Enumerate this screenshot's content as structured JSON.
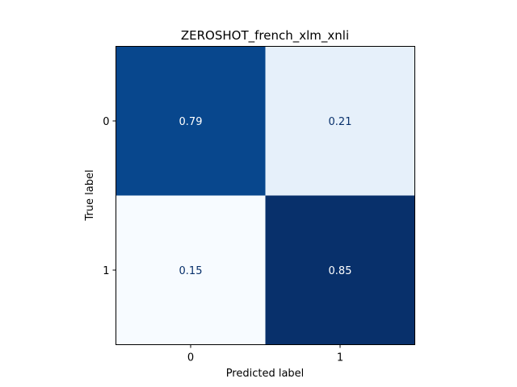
{
  "chart_data": {
    "type": "heatmap",
    "title": "ZEROSHOT_french_xlm_xnli",
    "xlabel": "Predicted label",
    "ylabel": "True label",
    "x_categories": [
      "0",
      "1"
    ],
    "y_categories": [
      "0",
      "1"
    ],
    "values": [
      [
        0.79,
        0.21
      ],
      [
        0.15,
        0.85
      ]
    ],
    "value_labels": [
      [
        "0.79",
        "0.21"
      ],
      [
        "0.15",
        "0.85"
      ]
    ],
    "colormap": "Blues",
    "colors": {
      "light": "#f7fbff",
      "dark": "#08306b",
      "text_on_dark": "#ffffff",
      "text_on_light": "#08306b"
    }
  }
}
